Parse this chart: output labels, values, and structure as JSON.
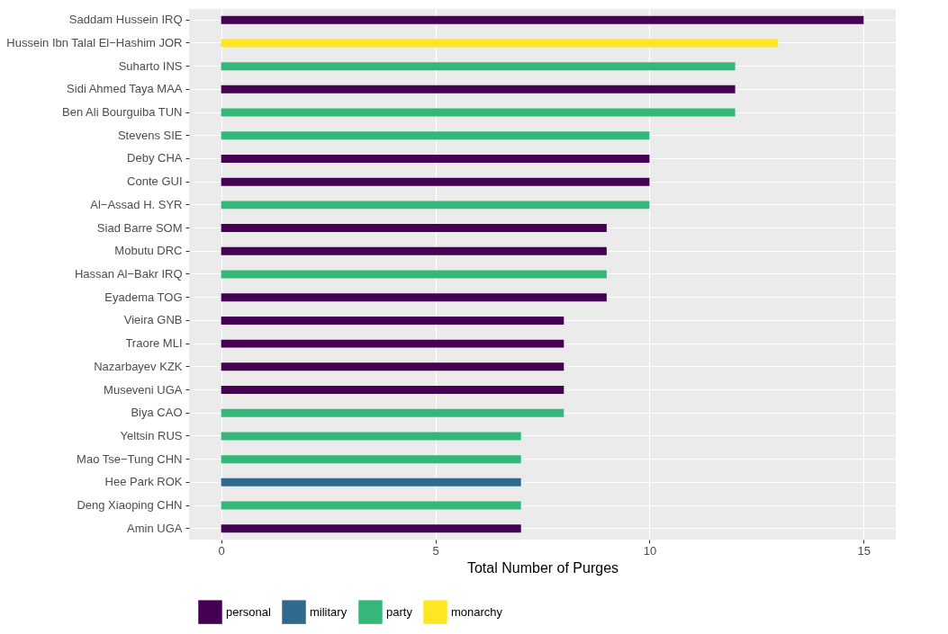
{
  "chart_data": {
    "type": "bar",
    "orientation": "horizontal",
    "xlabel": "Total Number of Purges",
    "categories": [
      "Saddam Hussein IRQ",
      "Hussein Ibn Talal El−Hashim JOR",
      "Suharto INS",
      "Sidi Ahmed Taya MAA",
      "Ben Ali Bourguiba TUN",
      "Stevens SIE",
      "Deby CHA",
      "Conte GUI",
      "Al−Assad H. SYR",
      "Siad Barre SOM",
      "Mobutu DRC",
      "Hassan Al−Bakr IRQ",
      "Eyadema TOG",
      "Vieira GNB",
      "Traore MLI",
      "Nazarbayev KZK",
      "Museveni UGA",
      "Biya CAO",
      "Yeltsin RUS",
      "Mao Tse−Tung CHN",
      "Hee Park ROK",
      "Deng Xiaoping CHN",
      "Amin UGA"
    ],
    "series": [
      {
        "name": "personal",
        "color": "#440154",
        "values": [
          15,
          null,
          null,
          12,
          null,
          null,
          10,
          10,
          null,
          9,
          9,
          null,
          9,
          8,
          8,
          8,
          8,
          null,
          null,
          null,
          null,
          null,
          7
        ]
      },
      {
        "name": "military",
        "color": "#31688e",
        "values": [
          null,
          null,
          null,
          null,
          null,
          null,
          null,
          null,
          null,
          null,
          null,
          null,
          null,
          null,
          null,
          null,
          null,
          null,
          null,
          null,
          7,
          null,
          null
        ]
      },
      {
        "name": "party",
        "color": "#35b779",
        "values": [
          null,
          null,
          12,
          null,
          12,
          10,
          null,
          null,
          10,
          null,
          null,
          9,
          null,
          null,
          null,
          null,
          null,
          8,
          7,
          7,
          null,
          7,
          null
        ]
      },
      {
        "name": "monarchy",
        "color": "#fde725",
        "values": [
          null,
          13,
          null,
          null,
          null,
          null,
          null,
          null,
          null,
          null,
          null,
          null,
          null,
          null,
          null,
          null,
          null,
          null,
          null,
          null,
          null,
          null,
          null
        ]
      }
    ],
    "xlim": [
      -0.75,
      15.75
    ],
    "xticks": [
      0,
      5,
      10,
      15
    ],
    "grid": true,
    "legend": "bottom"
  }
}
